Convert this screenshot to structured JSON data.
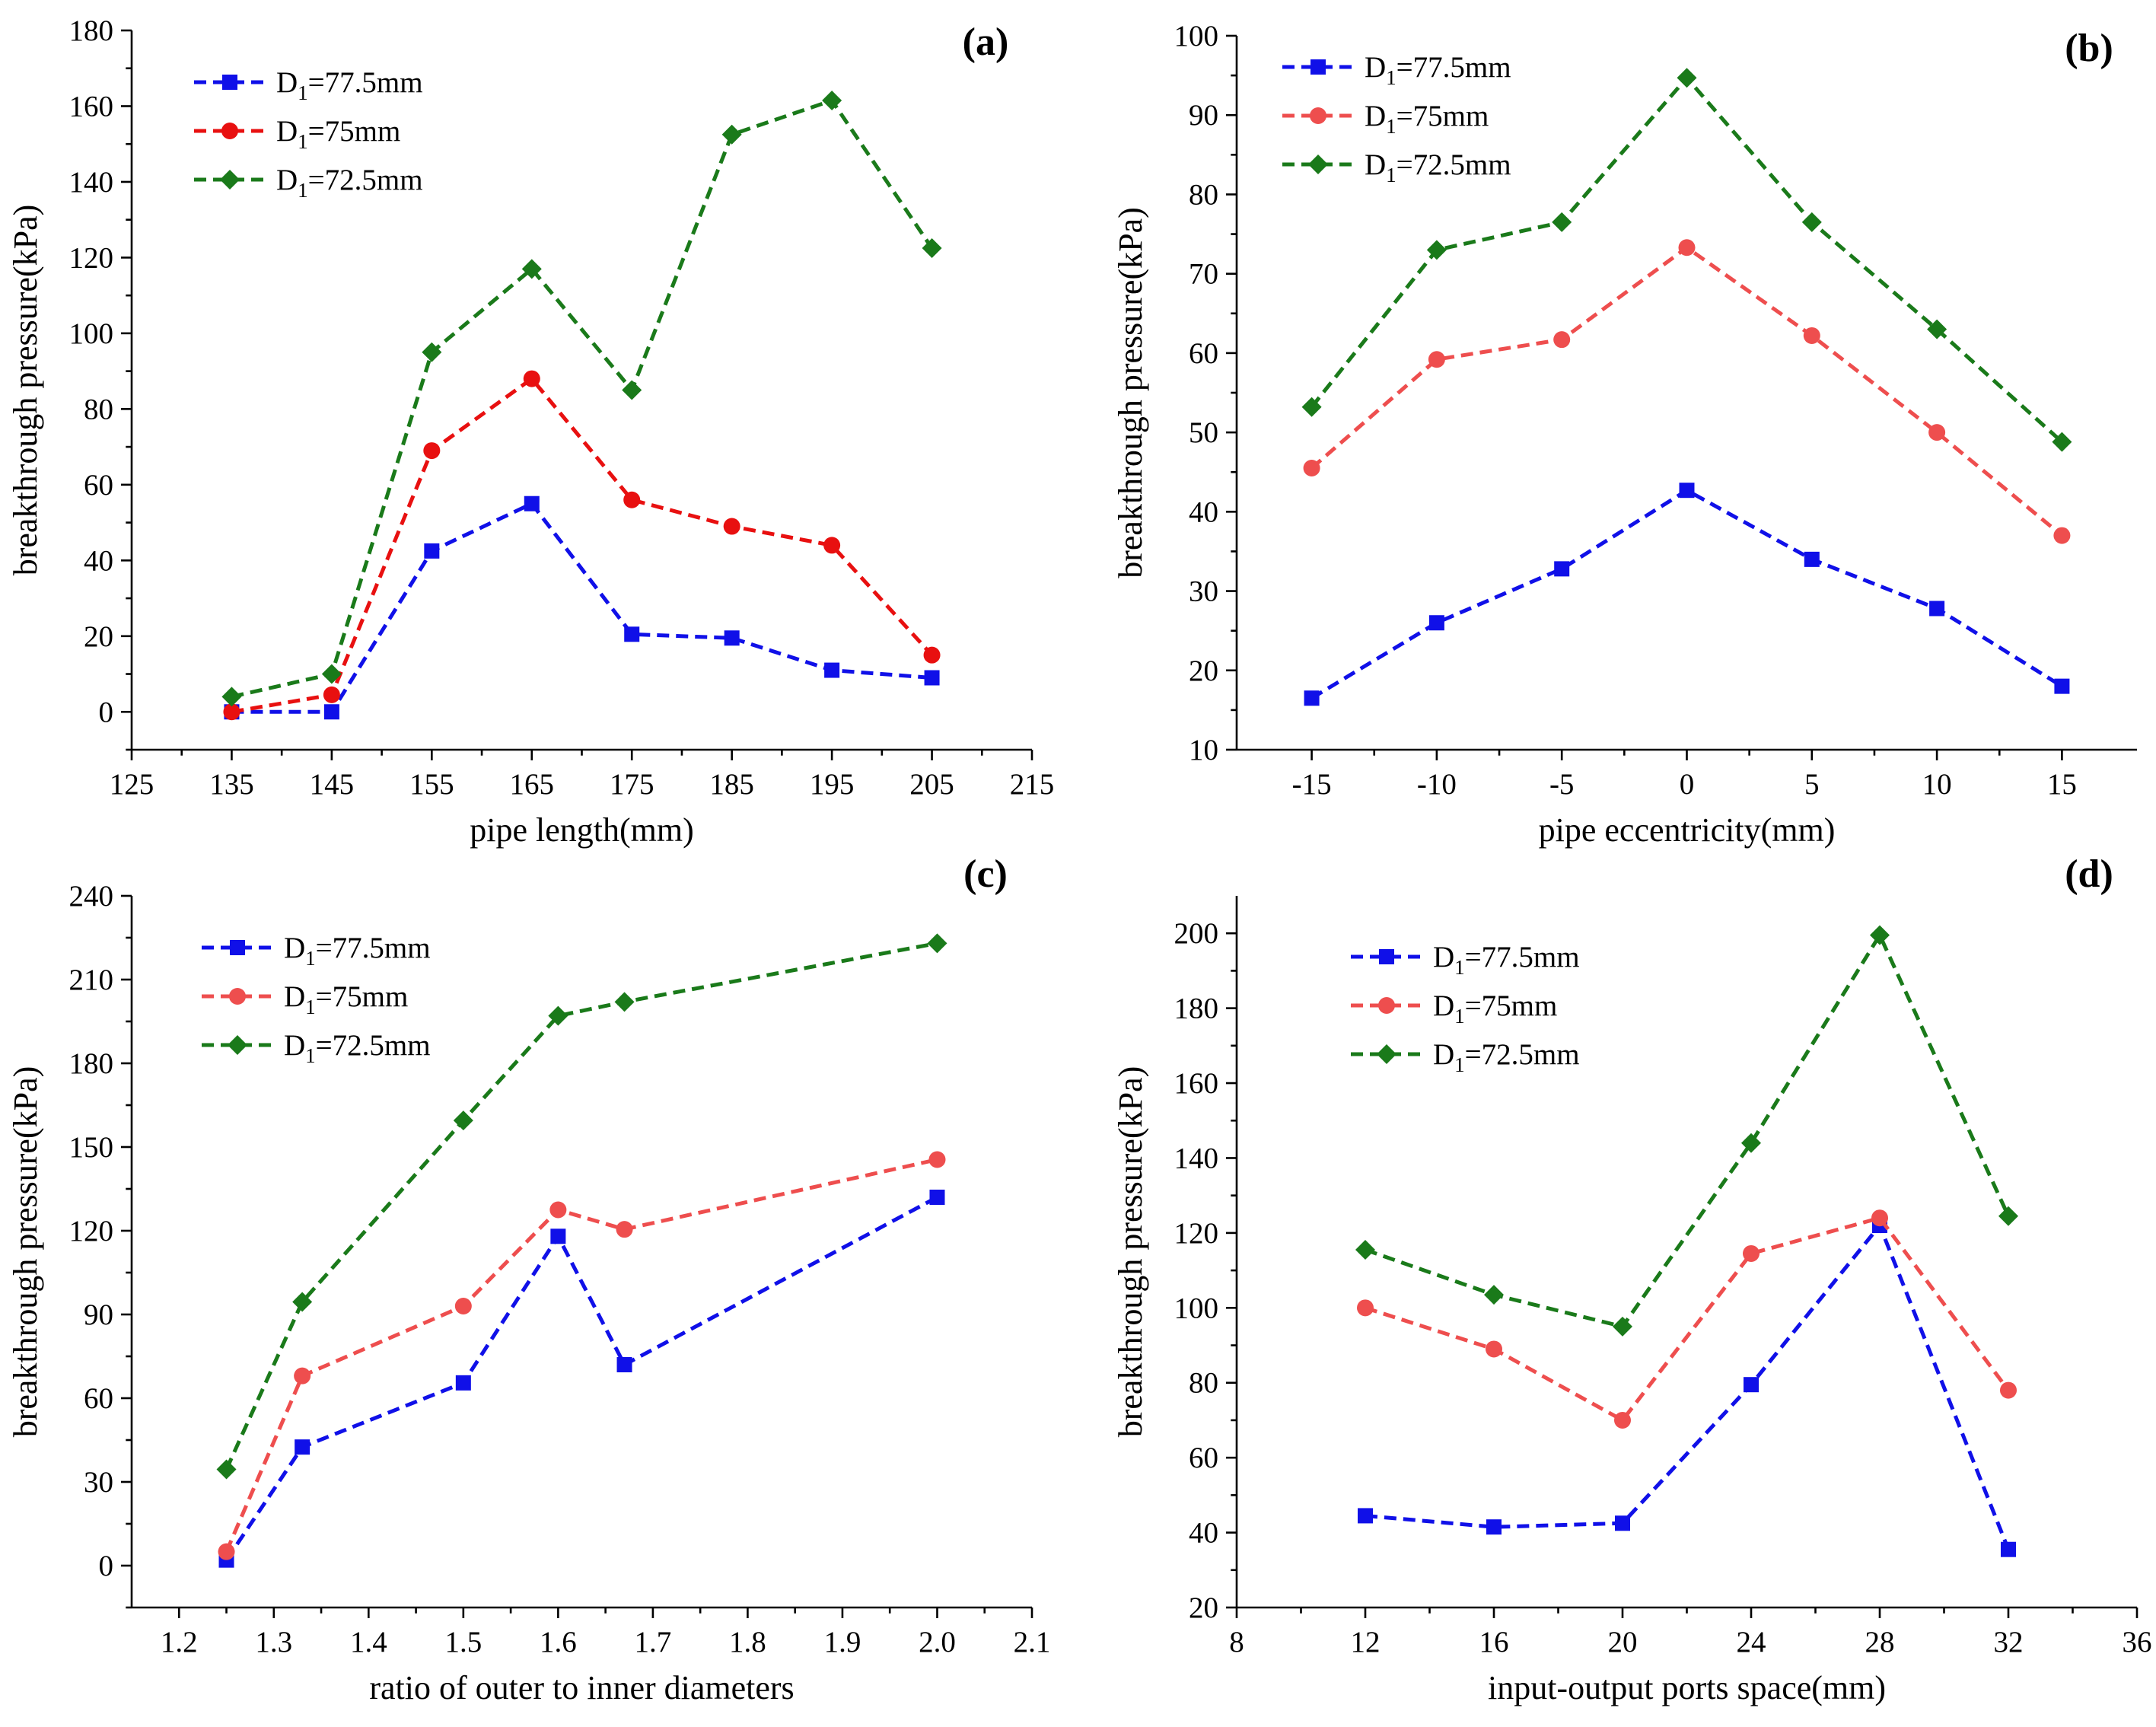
{
  "figure": {
    "legend_prefix": "D",
    "legend_subscript": "1"
  },
  "colors": {
    "d1_77_5": "#1010e8",
    "d1_75_a": "#e81010",
    "d1_75": "#ee4e4e",
    "d1_72_5": "#1a7a1a"
  },
  "chart_data": [
    {
      "id": "a",
      "type": "line",
      "panel_label": "(a)",
      "xlabel": "pipe length(mm)",
      "ylabel": "breakthrough pressure(kPa)",
      "xlim": [
        125,
        215
      ],
      "ylim": [
        -10,
        180
      ],
      "xticks": [
        125,
        135,
        145,
        155,
        165,
        175,
        185,
        195,
        205,
        215
      ],
      "yticks": [
        0,
        20,
        40,
        60,
        80,
        100,
        120,
        140,
        160,
        180
      ],
      "x": [
        135,
        145,
        155,
        165,
        175,
        185,
        195,
        205
      ],
      "series": [
        {
          "name": "D1=77.5mm",
          "label_suffix": "=77.5mm",
          "color_key": "d1_77_5",
          "marker": "square",
          "values": [
            0,
            0,
            42.5,
            55,
            20.5,
            19.5,
            11,
            9
          ]
        },
        {
          "name": "D1=75mm",
          "label_suffix": "=75mm",
          "color_key": "d1_75_a",
          "marker": "circle",
          "values": [
            0,
            4.5,
            69,
            88,
            56,
            49,
            44,
            15
          ]
        },
        {
          "name": "D1=72.5mm",
          "label_suffix": "=72.5mm",
          "color_key": "d1_72_5",
          "marker": "diamond",
          "values": [
            4,
            10,
            95,
            117,
            85,
            152.5,
            161.5,
            122.5
          ]
        }
      ]
    },
    {
      "id": "b",
      "type": "line",
      "panel_label": "(b)",
      "xlabel": "pipe eccentricity(mm)",
      "ylabel": "breakthrough pressure(kPa)",
      "xlim": [
        -18,
        18
      ],
      "ylim": [
        10,
        100
      ],
      "xticks": [
        -15,
        -10,
        -5,
        0,
        5,
        10,
        15
      ],
      "yticks": [
        10,
        20,
        30,
        40,
        50,
        60,
        70,
        80,
        90,
        100
      ],
      "x": [
        -15,
        -10,
        -5,
        0,
        5,
        10,
        15
      ],
      "series": [
        {
          "name": "D1=77.5mm",
          "label_suffix": "=77.5mm",
          "color_key": "d1_77_5",
          "marker": "square",
          "values": [
            16.5,
            26,
            32.8,
            42.7,
            34,
            27.8,
            18
          ]
        },
        {
          "name": "D1=75mm",
          "label_suffix": "=75mm",
          "color_key": "d1_75",
          "marker": "circle",
          "values": [
            45.5,
            59.2,
            61.7,
            73.3,
            62.2,
            50,
            37
          ]
        },
        {
          "name": "D1=72.5mm",
          "label_suffix": "=72.5mm",
          "color_key": "d1_72_5",
          "marker": "diamond",
          "values": [
            53.2,
            73,
            76.5,
            94.7,
            76.5,
            63,
            48.8
          ]
        }
      ]
    },
    {
      "id": "c",
      "type": "line",
      "panel_label": "(c)",
      "xlabel": "ratio of outer to inner diameters",
      "ylabel": "breakthrough pressure(kPa)",
      "xlim": [
        1.15,
        2.1
      ],
      "ylim": [
        -15,
        240
      ],
      "xticks": [
        1.2,
        1.3,
        1.4,
        1.5,
        1.6,
        1.7,
        1.8,
        1.9,
        2.0,
        2.1
      ],
      "xtick_labels": [
        "1.2",
        "1.3",
        "1.4",
        "1.5",
        "1.6",
        "1.7",
        "1.8",
        "1.9",
        "2.0",
        "2.1"
      ],
      "yticks": [
        0,
        30,
        60,
        90,
        120,
        150,
        180,
        210,
        240
      ],
      "x": [
        1.25,
        1.33,
        1.5,
        1.6,
        1.67,
        2.0
      ],
      "series": [
        {
          "name": "D1=77.5mm",
          "label_suffix": "=77.5mm",
          "color_key": "d1_77_5",
          "marker": "square",
          "values": [
            2,
            42.5,
            65.5,
            118,
            72,
            132
          ]
        },
        {
          "name": "D1=75mm",
          "label_suffix": "=75mm",
          "color_key": "d1_75",
          "marker": "circle",
          "values": [
            5,
            68,
            93,
            127.5,
            120.5,
            145.5
          ]
        },
        {
          "name": "D1=72.5mm",
          "label_suffix": "=72.5mm",
          "color_key": "d1_72_5",
          "marker": "diamond",
          "values": [
            34.5,
            94.5,
            159.5,
            197,
            202,
            223
          ]
        }
      ]
    },
    {
      "id": "d",
      "type": "line",
      "panel_label": "(d)",
      "xlabel": "input-output ports space(mm)",
      "ylabel": "breakthrough pressure(kPa)",
      "xlim": [
        8,
        36
      ],
      "ylim": [
        20,
        210
      ],
      "xticks": [
        8,
        12,
        16,
        20,
        24,
        28,
        32,
        36
      ],
      "yticks": [
        20,
        40,
        60,
        80,
        100,
        120,
        140,
        160,
        180,
        200
      ],
      "x": [
        12,
        16,
        20,
        24,
        28,
        32
      ],
      "series": [
        {
          "name": "D1=77.5mm",
          "label_suffix": "=77.5mm",
          "color_key": "d1_77_5",
          "marker": "square",
          "values": [
            44.5,
            41.5,
            42.5,
            79.5,
            122,
            35.5
          ]
        },
        {
          "name": "D1=75mm",
          "label_suffix": "=75mm",
          "color_key": "d1_75",
          "marker": "circle",
          "values": [
            100,
            89,
            70,
            114.5,
            124,
            78
          ]
        },
        {
          "name": "D1=72.5mm",
          "label_suffix": "=72.5mm",
          "color_key": "d1_72_5",
          "marker": "diamond",
          "values": [
            115.5,
            103.5,
            95,
            144,
            199.5,
            124.5
          ]
        }
      ]
    }
  ]
}
